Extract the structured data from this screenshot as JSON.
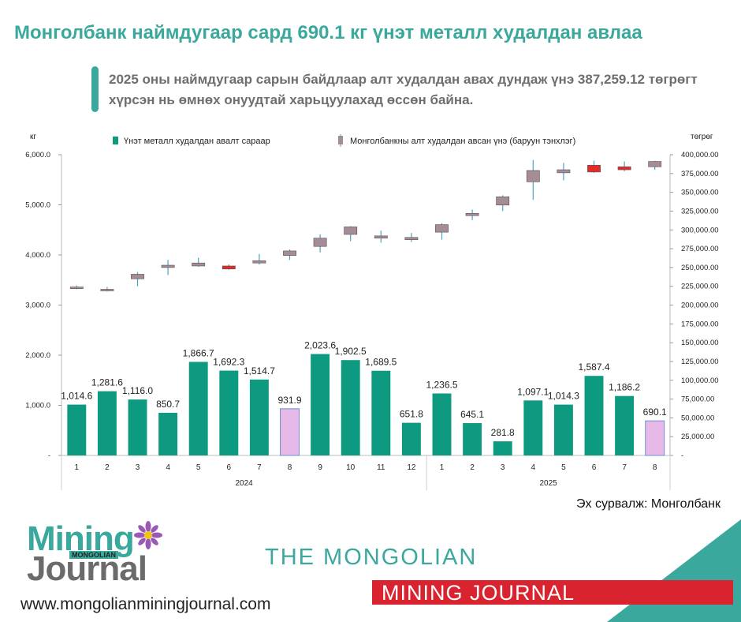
{
  "header": {
    "title": "Монголбанк наймдугаар сард 690.1 кг үнэт металл худалдан авлаа",
    "subtitle": "2025 оны наймдугаар сарын байдлаар алт худалдан авах дундаж үнэ 387,259.12 төгрөгт хүрсэн нь өмнөх онуудтай харьцуулахад өссөн байна."
  },
  "source": "Эх сурвалж: Монголбанк",
  "brand": {
    "line1": "THE MONGOLIAN",
    "line2": "MINING JOURNAL",
    "website": "www.mongolianminingjournal.com",
    "logo_word1": "Mining",
    "logo_word2": "Journal",
    "logo_small": "MONGOLIAN"
  },
  "colors": {
    "teal": "#0e9a80",
    "lavender": "#e6b9e9",
    "lavender_border": "#6f8fcf",
    "candle_up": "#a48d97",
    "candle_down": "#e32b2b",
    "candle_wick": "#4ba3c3",
    "accent": "#3aa89c",
    "red": "#d9232e"
  },
  "chart_data": {
    "type": "bar",
    "left_unit": "кг",
    "right_unit": "төгрөг",
    "left_ticks": [
      "-",
      "1,000.0",
      "2,000.0",
      "3,000.0",
      "4,000.0",
      "5,000.0",
      "6,000.0"
    ],
    "right_ticks": [
      "-",
      "25,000.00",
      "50,000.00",
      "75,000.00",
      "100,000.00",
      "125,000.00",
      "150,000.00",
      "175,000.00",
      "200,000.00",
      "225,000.00",
      "250,000.00",
      "275,000.00",
      "300,000.00",
      "325,000.00",
      "350,000.00",
      "375,000.00",
      "400,000.00"
    ],
    "ylim_left": [
      0,
      6000
    ],
    "ylim_right": [
      0,
      400000
    ],
    "legend": [
      {
        "label": "Үнэт металл худалдан авалт сараар",
        "symbol": "bar"
      },
      {
        "label": "Монголбанкны алт худалдан авсан үнэ (баруун тэнхлэг)",
        "symbol": "candle"
      }
    ],
    "years": [
      {
        "label": "2024",
        "months": 12
      },
      {
        "label": "2025",
        "months": 8
      }
    ],
    "categories": [
      "1",
      "2",
      "3",
      "4",
      "5",
      "6",
      "7",
      "8",
      "9",
      "10",
      "11",
      "12",
      "1",
      "2",
      "3",
      "4",
      "5",
      "6",
      "7",
      "8"
    ],
    "bars": [
      {
        "value": 1014.6,
        "label": "1,014.6",
        "highlight": false
      },
      {
        "value": 1281.6,
        "label": "1,281.6",
        "highlight": false
      },
      {
        "value": 1116.0,
        "label": "1,116.0",
        "highlight": false
      },
      {
        "value": 850.7,
        "label": "850.7",
        "highlight": false
      },
      {
        "value": 1866.7,
        "label": "1,866.7",
        "highlight": false
      },
      {
        "value": 1692.3,
        "label": "1,692.3",
        "highlight": false
      },
      {
        "value": 1514.7,
        "label": "1,514.7",
        "highlight": false
      },
      {
        "value": 931.9,
        "label": "931.9",
        "highlight": true
      },
      {
        "value": 2023.6,
        "label": "2,023.6",
        "highlight": false
      },
      {
        "value": 1902.5,
        "label": "1,902.5",
        "highlight": false
      },
      {
        "value": 1689.5,
        "label": "1,689.5",
        "highlight": false
      },
      {
        "value": 651.8,
        "label": "651.8",
        "highlight": false
      },
      {
        "value": 1236.5,
        "label": "1,236.5",
        "highlight": false
      },
      {
        "value": 645.1,
        "label": "645.1",
        "highlight": false
      },
      {
        "value": 281.8,
        "label": "281.8",
        "highlight": false
      },
      {
        "value": 1097.1,
        "label": "1,097.1",
        "highlight": false
      },
      {
        "value": 1014.3,
        "label": "1,014.3",
        "highlight": false
      },
      {
        "value": 1587.4,
        "label": "1,587.4",
        "highlight": false
      },
      {
        "value": 1186.2,
        "label": "1,186.2",
        "highlight": false
      },
      {
        "value": 690.1,
        "label": "690.1",
        "highlight": true
      }
    ],
    "candles": [
      {
        "open": 222000,
        "close": 224000,
        "high": 226000,
        "low": 221000,
        "down": false
      },
      {
        "open": 219000,
        "close": 221000,
        "high": 224000,
        "low": 218000,
        "down": false
      },
      {
        "open": 235000,
        "close": 241000,
        "high": 244000,
        "low": 225000,
        "down": false
      },
      {
        "open": 250000,
        "close": 253000,
        "high": 260000,
        "low": 240000,
        "down": false
      },
      {
        "open": 252000,
        "close": 256000,
        "high": 263000,
        "low": 251000,
        "down": false
      },
      {
        "open": 248000,
        "close": 252000,
        "high": 254000,
        "low": 247000,
        "down": true
      },
      {
        "open": 256000,
        "close": 259000,
        "high": 268000,
        "low": 254000,
        "down": false
      },
      {
        "open": 266000,
        "close": 272000,
        "high": 274000,
        "low": 260000,
        "down": false
      },
      {
        "open": 278000,
        "close": 289000,
        "high": 294000,
        "low": 270000,
        "down": false
      },
      {
        "open": 294000,
        "close": 304000,
        "high": 305000,
        "low": 285000,
        "down": false
      },
      {
        "open": 289000,
        "close": 292000,
        "high": 299000,
        "low": 283000,
        "down": false
      },
      {
        "open": 287000,
        "close": 290000,
        "high": 296000,
        "low": 284000,
        "down": false
      },
      {
        "open": 297000,
        "close": 307000,
        "high": 309000,
        "low": 287000,
        "down": false
      },
      {
        "open": 319000,
        "close": 322000,
        "high": 327000,
        "low": 313000,
        "down": false
      },
      {
        "open": 333000,
        "close": 344000,
        "high": 346000,
        "low": 325000,
        "down": false
      },
      {
        "open": 364000,
        "close": 379000,
        "high": 393000,
        "low": 340000,
        "down": false
      },
      {
        "open": 376000,
        "close": 380000,
        "high": 389000,
        "low": 366000,
        "down": false
      },
      {
        "open": 377000,
        "close": 386000,
        "high": 392000,
        "low": 376000,
        "down": true
      },
      {
        "open": 380000,
        "close": 384000,
        "high": 391000,
        "low": 378000,
        "down": true
      },
      {
        "open": 384000,
        "close": 391000,
        "high": 392000,
        "low": 380000,
        "down": false
      }
    ]
  }
}
